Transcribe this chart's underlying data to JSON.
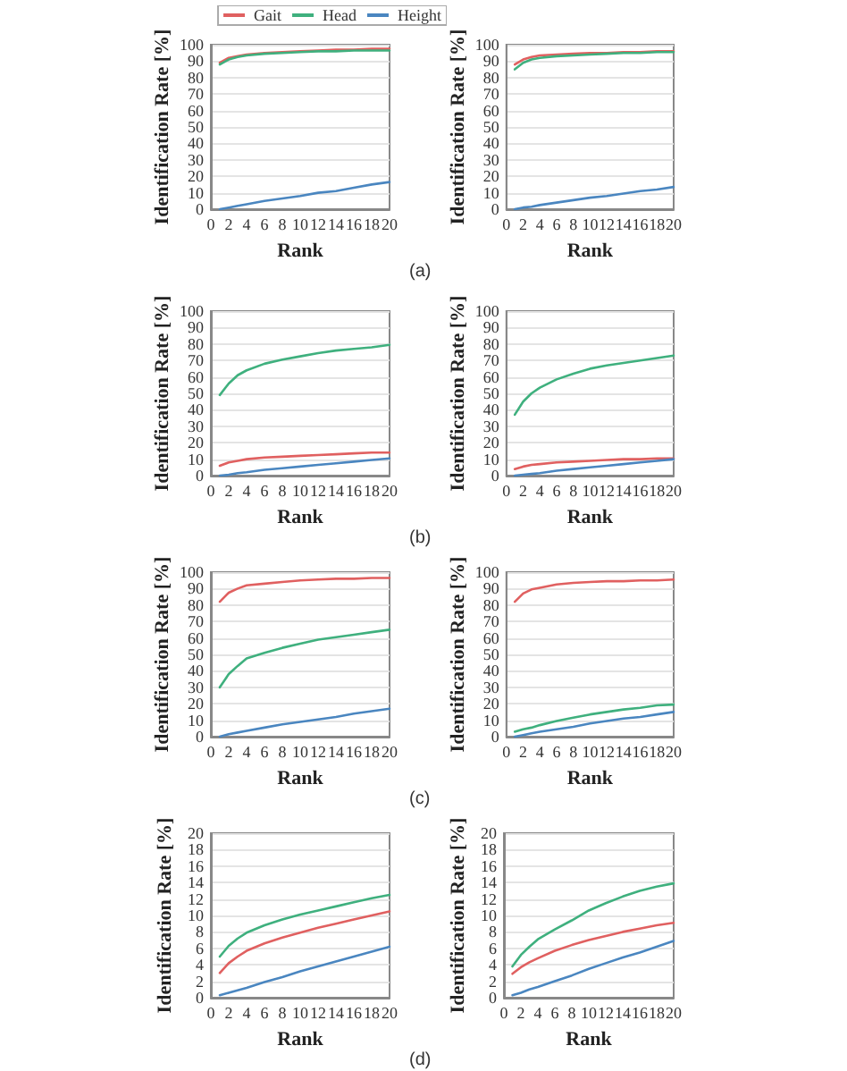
{
  "chart_data": [
    {
      "type": "line",
      "xlabel": "Rank",
      "ylabel": "Identification Rate [%]",
      "annotations": [
        "(a)"
      ],
      "legend": "top right",
      "grid": "y",
      "marker": "none",
      "line_style": "solid",
      "xlim": [
        0,
        20
      ],
      "xticks": [
        0,
        2,
        4,
        6,
        8,
        10,
        12,
        14,
        16,
        18,
        20
      ],
      "ylim": [
        0,
        100
      ],
      "yticks": [
        0,
        10,
        20,
        30,
        40,
        50,
        60,
        70,
        80,
        90,
        100
      ],
      "x": [
        1,
        2,
        3,
        4,
        6,
        8,
        10,
        12,
        14,
        16,
        18,
        20
      ],
      "series": [
        {
          "name": "Gait",
          "color": "#e06060",
          "values": [
            89,
            92,
            93,
            94,
            95,
            95.5,
            96,
            96.5,
            97,
            97,
            97.5,
            97.5
          ]
        },
        {
          "name": "Head",
          "color": "#3fb07e",
          "values": [
            88,
            91,
            92.5,
            93.5,
            94.5,
            95,
            95.5,
            96,
            96,
            96.5,
            96.5,
            96.5
          ]
        },
        {
          "name": "Height",
          "color": "#4a86c0",
          "values": [
            0,
            1,
            2,
            3,
            5,
            6.5,
            8,
            10,
            11,
            13,
            15,
            16.5
          ]
        }
      ]
    },
    {
      "type": "line",
      "xlabel": "Rank",
      "ylabel": "Identification Rate [%]",
      "grid": "y",
      "marker": "none",
      "line_style": "solid",
      "xlim": [
        0,
        20
      ],
      "xticks": [
        0,
        2,
        4,
        6,
        8,
        10,
        12,
        14,
        16,
        18,
        20
      ],
      "ylim": [
        0,
        100
      ],
      "yticks": [
        0,
        10,
        20,
        30,
        40,
        50,
        60,
        70,
        80,
        90,
        100
      ],
      "x": [
        1,
        2,
        3,
        4,
        6,
        8,
        10,
        12,
        14,
        16,
        18,
        20
      ],
      "series": [
        {
          "color": "#e06060",
          "values": [
            88,
            91,
            92.5,
            93.5,
            94,
            94.5,
            95,
            95,
            95.5,
            95.5,
            96,
            96
          ]
        },
        {
          "color": "#3fb07e",
          "values": [
            85,
            89,
            91,
            92,
            93,
            93.5,
            94,
            94.5,
            95,
            95,
            95.5,
            95.5
          ]
        },
        {
          "color": "#4a86c0",
          "values": [
            0,
            1,
            1.5,
            2.5,
            4,
            5.5,
            7,
            8,
            9.5,
            11,
            12,
            13.5
          ]
        }
      ]
    },
    {
      "type": "line",
      "xlabel": "Rank",
      "ylabel": "Identification Rate [%]",
      "annotations": [
        "(b)"
      ],
      "grid": "y",
      "marker": "none",
      "line_style": "solid",
      "xlim": [
        0,
        20
      ],
      "xticks": [
        0,
        2,
        4,
        6,
        8,
        10,
        12,
        14,
        16,
        18,
        20
      ],
      "ylim": [
        0,
        100
      ],
      "yticks": [
        0,
        10,
        20,
        30,
        40,
        50,
        60,
        70,
        80,
        90,
        100
      ],
      "x": [
        1,
        2,
        3,
        4,
        6,
        8,
        10,
        12,
        14,
        16,
        18,
        20
      ],
      "series": [
        {
          "color": "#e06060",
          "values": [
            6,
            8,
            9,
            10,
            11,
            11.5,
            12,
            12.5,
            13,
            13.5,
            14,
            14
          ]
        },
        {
          "color": "#3fb07e",
          "values": [
            49,
            56,
            61,
            64,
            68,
            70.5,
            72.5,
            74.5,
            76,
            77,
            78,
            79.5
          ]
        },
        {
          "color": "#4a86c0",
          "values": [
            0,
            0.5,
            1.5,
            2,
            3.5,
            4.5,
            5.5,
            6.5,
            7.5,
            8.5,
            9.5,
            10.5
          ]
        }
      ]
    },
    {
      "type": "line",
      "xlabel": "Rank",
      "ylabel": "Identification Rate [%]",
      "grid": "y",
      "marker": "none",
      "line_style": "solid",
      "xlim": [
        0,
        20
      ],
      "xticks": [
        0,
        2,
        4,
        6,
        8,
        10,
        12,
        14,
        16,
        18,
        20
      ],
      "ylim": [
        0,
        100
      ],
      "yticks": [
        0,
        10,
        20,
        30,
        40,
        50,
        60,
        70,
        80,
        90,
        100
      ],
      "x": [
        1,
        2,
        3,
        4,
        6,
        8,
        10,
        12,
        14,
        16,
        18,
        20
      ],
      "series": [
        {
          "color": "#e06060",
          "values": [
            4,
            5.5,
            6.5,
            7,
            8,
            8.5,
            9,
            9.5,
            10,
            10,
            10.5,
            10.5
          ]
        },
        {
          "color": "#3fb07e",
          "values": [
            37,
            45,
            50,
            53.5,
            58.5,
            62,
            65,
            67,
            68.5,
            70,
            71.5,
            73
          ]
        },
        {
          "color": "#4a86c0",
          "values": [
            0,
            0.5,
            1,
            1.5,
            3,
            4,
            5,
            6,
            7,
            8,
            9,
            10
          ]
        }
      ]
    },
    {
      "type": "line",
      "xlabel": "Rank",
      "ylabel": "Identification Rate [%]",
      "annotations": [
        "(c)"
      ],
      "grid": "y",
      "marker": "none",
      "line_style": "solid",
      "xlim": [
        0,
        20
      ],
      "xticks": [
        0,
        2,
        4,
        6,
        8,
        10,
        12,
        14,
        16,
        18,
        20
      ],
      "ylim": [
        0,
        100
      ],
      "yticks": [
        0,
        10,
        20,
        30,
        40,
        50,
        60,
        70,
        80,
        90,
        100
      ],
      "x": [
        1,
        2,
        3,
        4,
        6,
        8,
        10,
        12,
        14,
        16,
        18,
        20
      ],
      "series": [
        {
          "color": "#e06060",
          "values": [
            82,
            87.5,
            90,
            92,
            93,
            94,
            95,
            95.5,
            96,
            96,
            96.5,
            96.5
          ]
        },
        {
          "color": "#3fb07e",
          "values": [
            30,
            38,
            43,
            47.5,
            51,
            54,
            56.5,
            59,
            60.5,
            62,
            63.5,
            65
          ]
        },
        {
          "color": "#4a86c0",
          "values": [
            0,
            1.5,
            2.5,
            3.5,
            5.5,
            7.5,
            9,
            10.5,
            12,
            14,
            15.5,
            17
          ]
        }
      ]
    },
    {
      "type": "line",
      "xlabel": "Rank",
      "ylabel": "Identification Rate [%]",
      "grid": "y",
      "marker": "none",
      "line_style": "solid",
      "xlim": [
        0,
        20
      ],
      "xticks": [
        0,
        2,
        4,
        6,
        8,
        10,
        12,
        14,
        16,
        18,
        20
      ],
      "ylim": [
        0,
        100
      ],
      "yticks": [
        0,
        10,
        20,
        30,
        40,
        50,
        60,
        70,
        80,
        90,
        100
      ],
      "x": [
        1,
        2,
        3,
        4,
        6,
        8,
        10,
        12,
        14,
        16,
        18,
        20
      ],
      "series": [
        {
          "color": "#e06060",
          "values": [
            82,
            87,
            89.5,
            90.5,
            92.5,
            93.5,
            94,
            94.5,
            94.5,
            95,
            95,
            95.5
          ]
        },
        {
          "color": "#3fb07e",
          "values": [
            3,
            4.5,
            5.5,
            7,
            9.5,
            11.5,
            13.5,
            15,
            16.5,
            17.5,
            19,
            19.5
          ]
        },
        {
          "color": "#4a86c0",
          "values": [
            0,
            1,
            2,
            3,
            4.5,
            6,
            8,
            9.5,
            11,
            12,
            13.5,
            15
          ]
        }
      ]
    },
    {
      "type": "line",
      "xlabel": "Rank",
      "ylabel": "Identification Rate [%]",
      "annotations": [
        "(d)"
      ],
      "grid": "y",
      "marker": "none",
      "line_style": "solid",
      "xlim": [
        0,
        20
      ],
      "xticks": [
        0,
        2,
        4,
        6,
        8,
        10,
        12,
        14,
        16,
        18,
        20
      ],
      "ylim": [
        0,
        20
      ],
      "yticks": [
        0,
        2,
        4,
        6,
        8,
        10,
        12,
        14,
        16,
        18,
        20
      ],
      "x": [
        1,
        2,
        3,
        4,
        6,
        8,
        10,
        12,
        14,
        16,
        18,
        20
      ],
      "series": [
        {
          "color": "#e06060",
          "values": [
            3,
            4.2,
            5,
            5.7,
            6.6,
            7.3,
            7.9,
            8.5,
            9,
            9.5,
            10,
            10.5
          ]
        },
        {
          "color": "#3fb07e",
          "values": [
            5,
            6.3,
            7.2,
            7.9,
            8.8,
            9.5,
            10.1,
            10.6,
            11.1,
            11.6,
            12.1,
            12.5
          ]
        },
        {
          "color": "#4a86c0",
          "values": [
            0.3,
            0.6,
            0.9,
            1.2,
            1.9,
            2.5,
            3.2,
            3.8,
            4.4,
            5,
            5.6,
            6.2
          ]
        }
      ]
    },
    {
      "type": "line",
      "xlabel": "Rank",
      "ylabel": "Identification Rate [%]",
      "grid": "y",
      "marker": "none",
      "line_style": "solid",
      "xlim": [
        0,
        20
      ],
      "xticks": [
        0,
        2,
        4,
        6,
        8,
        10,
        12,
        14,
        16,
        18,
        20
      ],
      "ylim": [
        0,
        20
      ],
      "yticks": [
        0,
        2,
        4,
        6,
        8,
        10,
        12,
        14,
        16,
        18,
        20
      ],
      "x": [
        1,
        2,
        3,
        4,
        6,
        8,
        10,
        12,
        14,
        16,
        18,
        20
      ],
      "series": [
        {
          "color": "#e06060",
          "values": [
            2.9,
            3.7,
            4.3,
            4.8,
            5.7,
            6.4,
            7,
            7.5,
            8,
            8.4,
            8.8,
            9.1
          ]
        },
        {
          "color": "#3fb07e",
          "values": [
            3.8,
            5.2,
            6.2,
            7.1,
            8.3,
            9.4,
            10.6,
            11.5,
            12.3,
            13,
            13.5,
            13.9
          ]
        },
        {
          "color": "#4a86c0",
          "values": [
            0.3,
            0.6,
            1,
            1.3,
            2,
            2.7,
            3.5,
            4.2,
            4.9,
            5.5,
            6.2,
            6.9
          ]
        }
      ]
    }
  ]
}
